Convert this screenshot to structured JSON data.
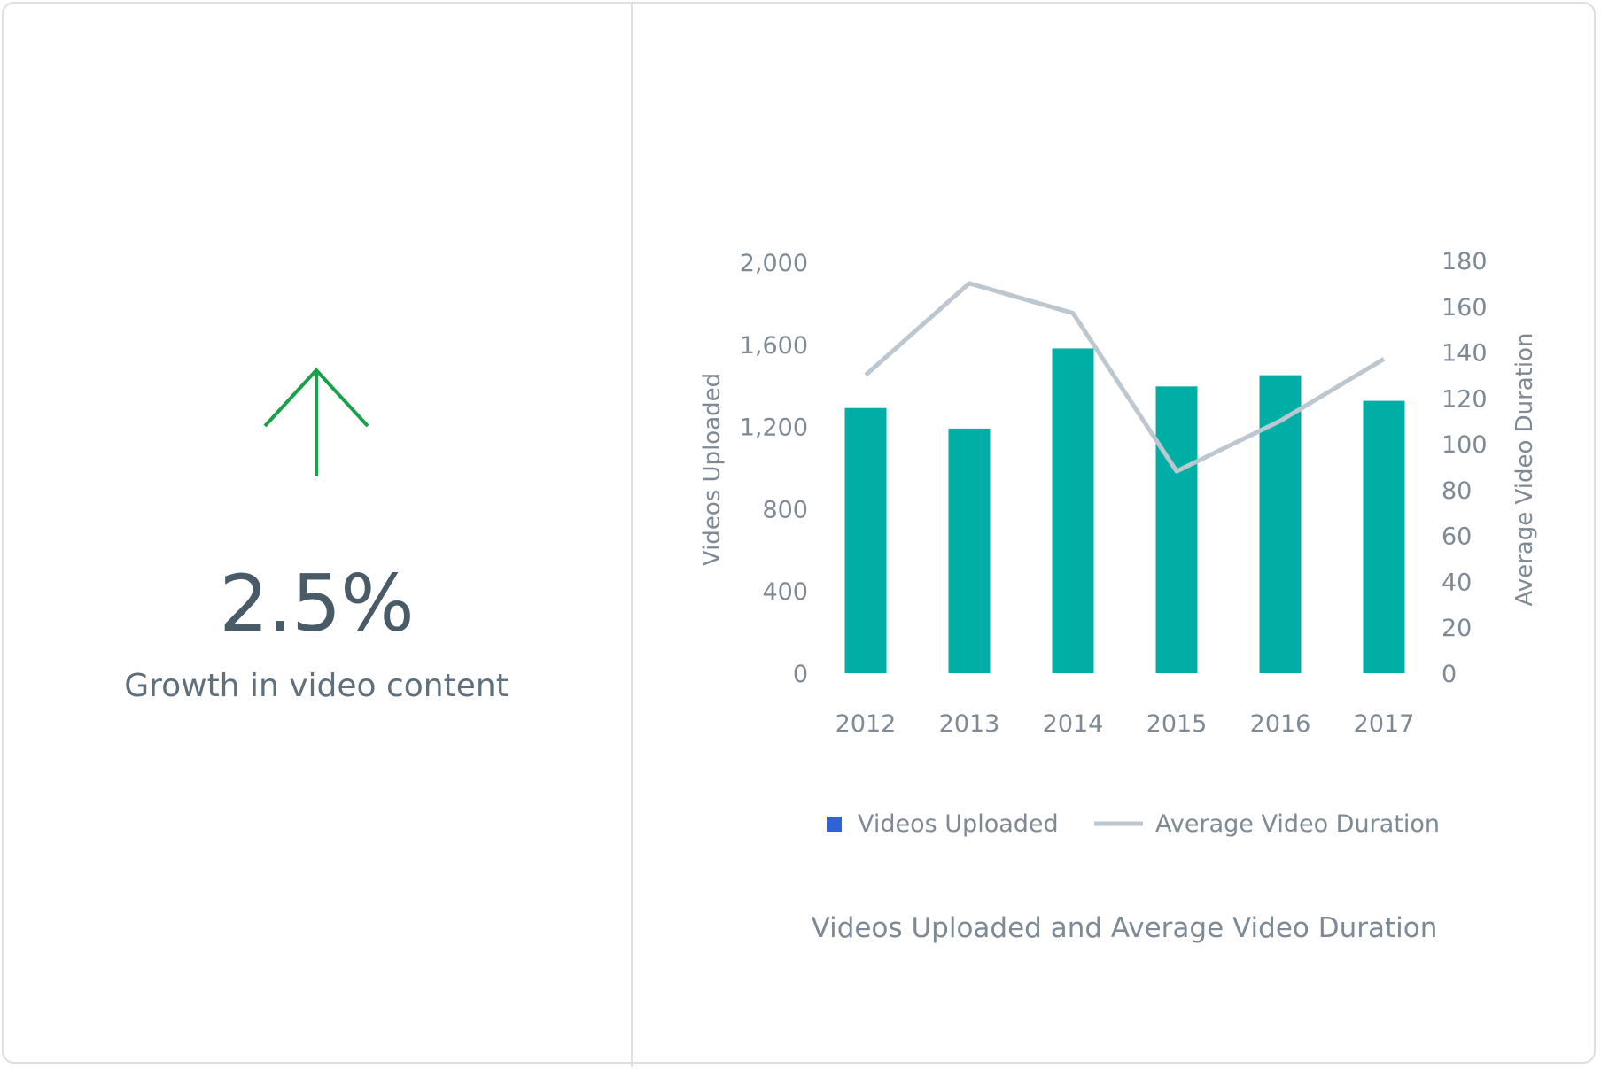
{
  "kpi": {
    "value": "2.5%",
    "label": "Growth in video content",
    "icon": "arrow-up-icon",
    "icon_color": "#1aa04a"
  },
  "chart_data": {
    "type": "bar",
    "title": "Videos Uploaded and Average Video Duration",
    "categories": [
      "2012",
      "2013",
      "2014",
      "2015",
      "2016",
      "2017"
    ],
    "series": [
      {
        "name": "Videos Uploaded",
        "type": "bar",
        "axis": "left",
        "color": "#00aea6",
        "legend_color": "#2f63d3",
        "values": [
          1290,
          1190,
          1580,
          1395,
          1450,
          1325
        ]
      },
      {
        "name": "Average Video Duration",
        "type": "line",
        "axis": "right",
        "color": "#bdc7cf",
        "values": [
          130,
          170,
          157,
          88,
          110,
          137
        ]
      }
    ],
    "ylabel": "Videos Uploaded",
    "y2label": "Average Video Duration",
    "ylim": [
      0,
      2000
    ],
    "y2lim": [
      0,
      180
    ],
    "yticks": [
      "0",
      "400",
      "800",
      "1,200",
      "1,600",
      "2,000"
    ],
    "y2ticks": [
      "0",
      "20",
      "40",
      "60",
      "80",
      "100",
      "120",
      "140",
      "160",
      "180"
    ],
    "grid": false,
    "legend_position": "bottom"
  }
}
